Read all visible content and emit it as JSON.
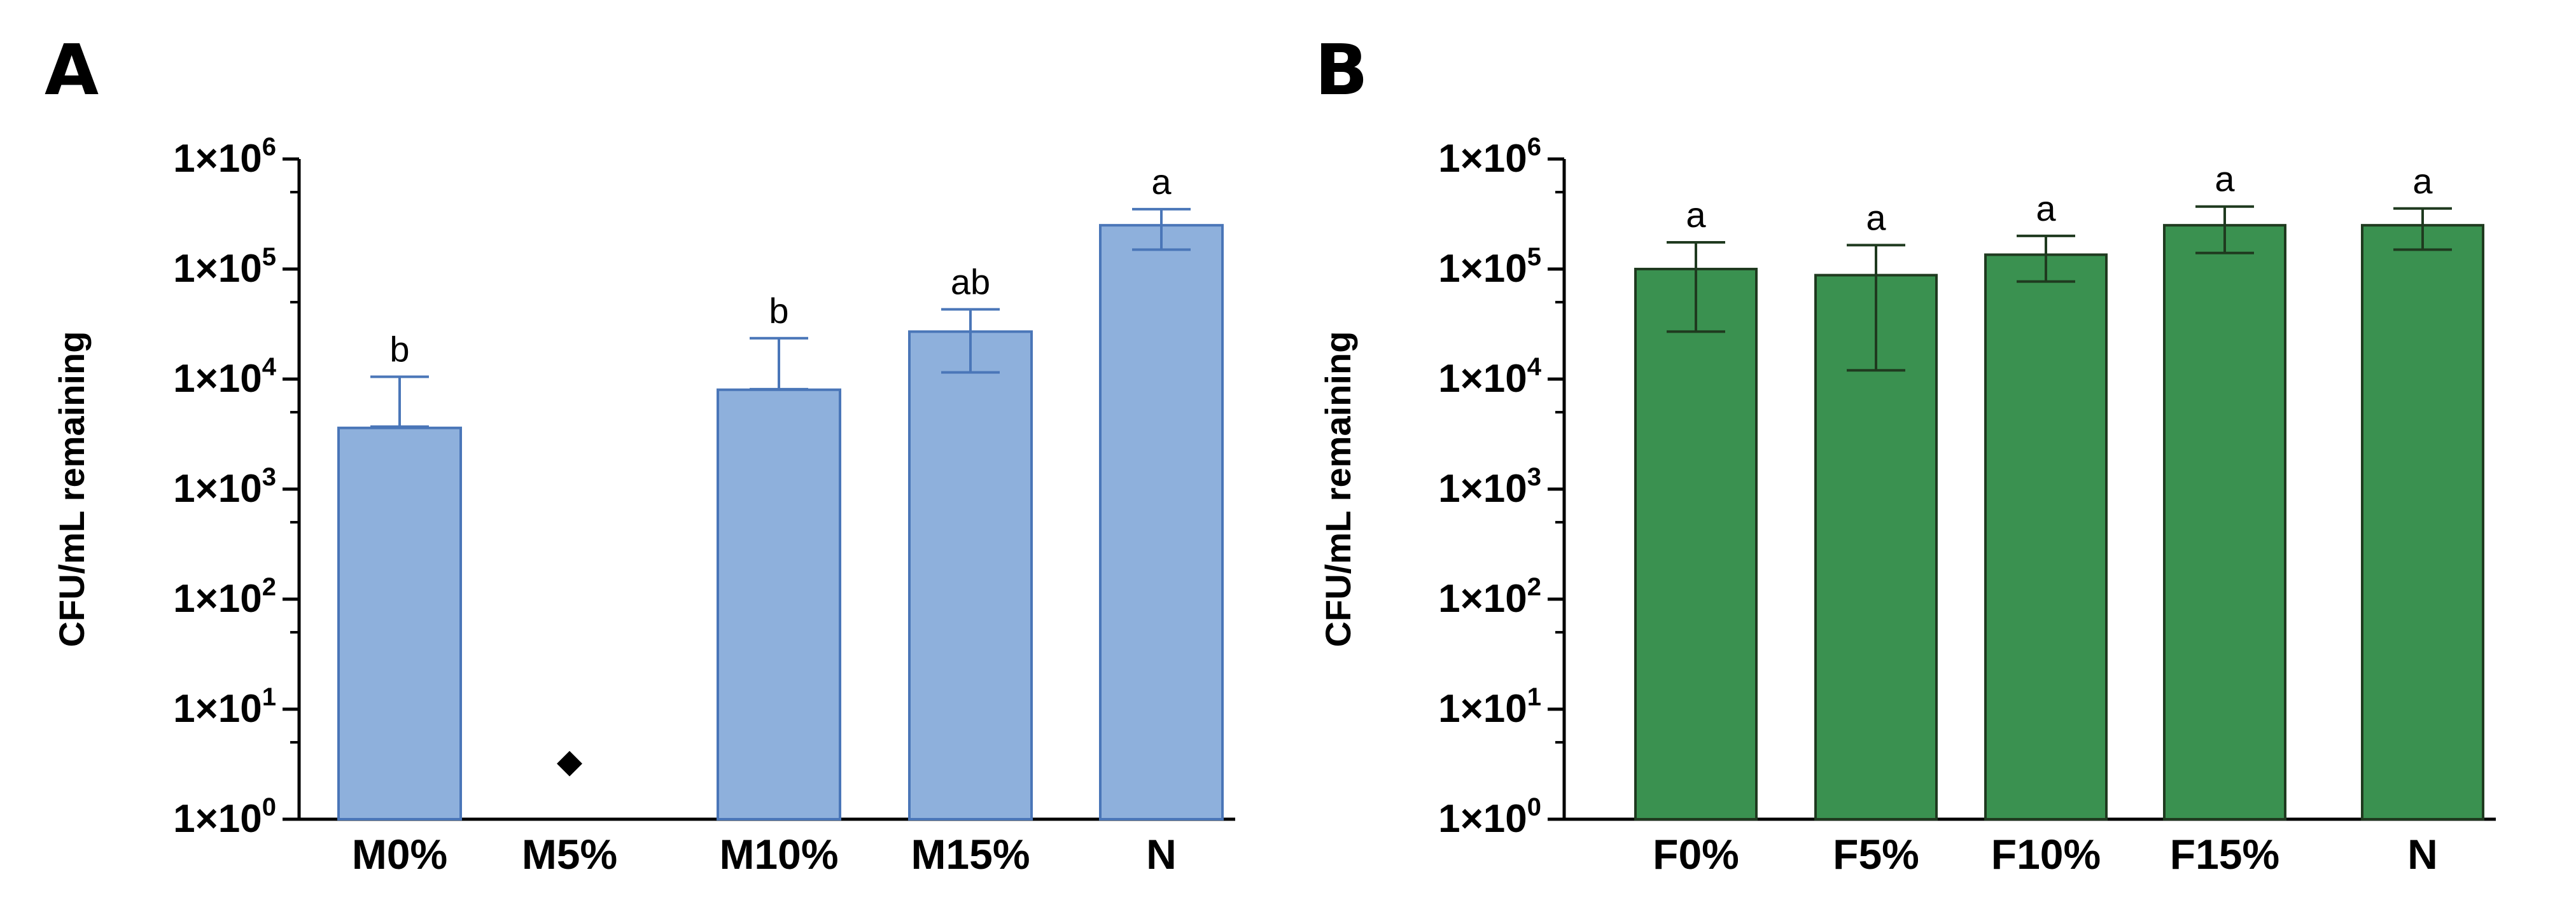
{
  "figure": {
    "panels": [
      "A",
      "B"
    ]
  },
  "chart_data": [
    {
      "type": "bar",
      "panel_label": "A",
      "ylabel": "CFU/mL remaining",
      "xlabel": "",
      "yscale": "log10",
      "ylim": [
        1,
        1000000
      ],
      "ytick_labels": [
        {
          "base": "1×10",
          "exp": "0"
        },
        {
          "base": "1×10",
          "exp": "1"
        },
        {
          "base": "1×10",
          "exp": "2"
        },
        {
          "base": "1×10",
          "exp": "3"
        },
        {
          "base": "1×10",
          "exp": "4"
        },
        {
          "base": "1×10",
          "exp": "5"
        },
        {
          "base": "1×10",
          "exp": "6"
        }
      ],
      "categories": [
        "M0%",
        "M5%",
        "M10%",
        "M15%",
        "N"
      ],
      "values": [
        3600,
        null,
        8000,
        27000,
        250000
      ],
      "error_high": [
        10500,
        null,
        23500,
        43000,
        350000
      ],
      "error_low": [
        3700,
        null,
        8100,
        11500,
        150000
      ],
      "significance": [
        "b",
        "",
        "b",
        "ab",
        "a"
      ],
      "markers": [
        {
          "category": "M5%",
          "value": 3.2,
          "shape": "diamond"
        }
      ],
      "bar_color": "#8eb0dc",
      "edge_color": "#4a76b8"
    },
    {
      "type": "bar",
      "panel_label": "B",
      "ylabel": "CFU/mL remaining",
      "xlabel": "",
      "yscale": "log10",
      "ylim": [
        1,
        1000000
      ],
      "ytick_labels": [
        {
          "base": "1×10",
          "exp": "0"
        },
        {
          "base": "1×10",
          "exp": "1"
        },
        {
          "base": "1×10",
          "exp": "2"
        },
        {
          "base": "1×10",
          "exp": "3"
        },
        {
          "base": "1×10",
          "exp": "4"
        },
        {
          "base": "1×10",
          "exp": "5"
        },
        {
          "base": "1×10",
          "exp": "6"
        }
      ],
      "categories": [
        "F0%",
        "F5%",
        "F10%",
        "F15%",
        "N"
      ],
      "values": [
        100000,
        88000,
        135000,
        250000,
        250000
      ],
      "error_high": [
        175000,
        165000,
        200000,
        370000,
        355000
      ],
      "error_low": [
        27000,
        12000,
        77000,
        140000,
        150000
      ],
      "significance": [
        "a",
        "a",
        "a",
        "a",
        "a"
      ],
      "markers": [],
      "bar_color": "#3a9150",
      "edge_color": "#1f3a1f"
    }
  ]
}
